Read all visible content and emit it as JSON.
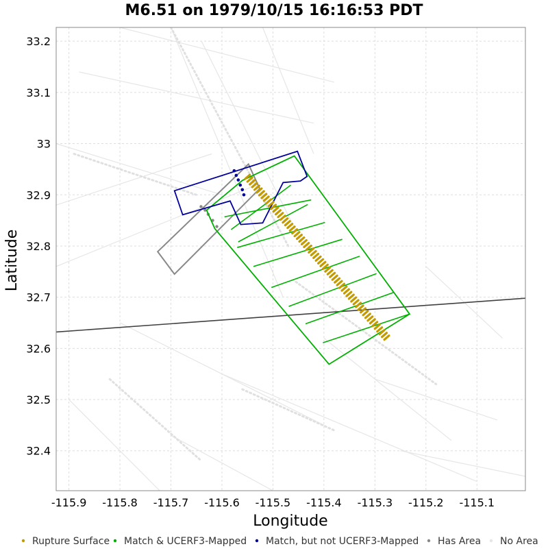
{
  "chart_data": {
    "type": "scatter",
    "title": "M6.51 on 1979/10/15 16:16:53 PDT",
    "xlabel": "Longitude",
    "ylabel": "Latitude",
    "xlim": [
      -115.925,
      -115.005
    ],
    "ylim": [
      32.322,
      33.227
    ],
    "grid": true,
    "x_ticks": [
      -115.9,
      -115.8,
      -115.7,
      -115.6,
      -115.5,
      -115.4,
      -115.3,
      -115.2,
      -115.1
    ],
    "x_tick_labels": [
      "-115.9",
      "-115.8",
      "-115.7",
      "-115.6",
      "-115.5",
      "-115.4",
      "-115.3",
      "-115.2",
      "-115.1"
    ],
    "y_ticks": [
      32.4,
      32.5,
      32.6,
      32.7,
      32.8,
      32.9,
      33.0,
      33.1,
      33.2
    ],
    "y_tick_labels": [
      "32.4",
      "32.5",
      "32.6",
      "32.7",
      "32.8",
      "32.9",
      "33",
      "33.1",
      "33.2"
    ],
    "legend_position": "bottom",
    "legend": [
      {
        "label": "Rupture Surface",
        "color": "#c39a00"
      },
      {
        "label": "Match & UCERF3-Mapped",
        "color": "#00b000"
      },
      {
        "label": "Match, but not UCERF3-Mapped",
        "color": "#00009a"
      },
      {
        "label": "Has Area",
        "color": "#888888"
      },
      {
        "label": "No Area",
        "color": "#e6e6e6"
      }
    ],
    "colors": {
      "rupture": "#c39a00",
      "match_mapped": "#00b000",
      "match_unmapped": "#00009a",
      "has_area": "#888888",
      "no_area": "#e6e6e6",
      "line": "#404040",
      "grid": "#dddddd",
      "frame": "#888888"
    },
    "background_line": {
      "lon": [
        -115.925,
        -115.005
      ],
      "lat": [
        32.632,
        32.698
      ]
    },
    "rupture_surface": {
      "start": [
        -115.55,
        32.935
      ],
      "end": [
        -115.277,
        32.621
      ],
      "count": 60
    },
    "match_mapped_outline": [
      [
        -115.56,
        32.928
      ],
      [
        -115.458,
        32.976
      ],
      [
        -115.232,
        32.667
      ],
      [
        -115.39,
        32.569
      ],
      [
        -115.614,
        32.834
      ],
      [
        -115.63,
        32.87
      ]
    ],
    "match_mapped_segments": [
      [
        [
          -115.595,
          32.857
        ],
        [
          -115.425,
          32.89
        ]
      ],
      [
        [
          -115.582,
          32.832
        ],
        [
          -115.465,
          32.919
        ]
      ],
      [
        [
          -115.568,
          32.808
        ],
        [
          -115.432,
          32.881
        ]
      ],
      [
        [
          -115.57,
          32.797
        ],
        [
          -115.398,
          32.846
        ]
      ],
      [
        [
          -115.538,
          32.76
        ],
        [
          -115.364,
          32.813
        ]
      ],
      [
        [
          -115.503,
          32.719
        ],
        [
          -115.33,
          32.78
        ]
      ],
      [
        [
          -115.469,
          32.682
        ],
        [
          -115.297,
          32.746
        ]
      ],
      [
        [
          -115.436,
          32.648
        ],
        [
          -115.264,
          32.709
        ]
      ],
      [
        [
          -115.402,
          32.611
        ],
        [
          -115.232,
          32.667
        ]
      ]
    ],
    "match_unmapped_outlines": [
      [
        [
          -115.693,
          32.908
        ],
        [
          -115.452,
          32.985
        ],
        [
          -115.433,
          32.936
        ],
        [
          -115.446,
          32.927
        ],
        [
          -115.48,
          32.924
        ],
        [
          -115.52,
          32.845
        ],
        [
          -115.563,
          32.842
        ],
        [
          -115.584,
          32.888
        ],
        [
          -115.677,
          32.861
        ]
      ]
    ],
    "match_unmapped_points": [
      [
        -115.576,
        32.947
      ],
      [
        -115.572,
        32.938
      ],
      [
        -115.568,
        32.929
      ],
      [
        -115.564,
        32.919
      ],
      [
        -115.56,
        32.91
      ],
      [
        -115.557,
        32.9
      ]
    ],
    "has_area_outlines": [
      [
        [
          -115.548,
          32.96
        ],
        [
          -115.526,
          32.912
        ],
        [
          -115.693,
          32.745
        ],
        [
          -115.726,
          32.789
        ]
      ]
    ],
    "has_area_points": [
      [
        -115.641,
        32.877
      ],
      [
        -115.633,
        32.87
      ],
      [
        -115.627,
        32.862
      ],
      [
        -115.618,
        32.85
      ],
      [
        -115.61,
        32.838
      ]
    ],
    "no_area_segments": [
      [
        [
          -115.925,
          32.88
        ],
        [
          -115.62,
          32.98
        ]
      ],
      [
        [
          -115.7,
          33.227
        ],
        [
          -115.48,
          32.7
        ]
      ],
      [
        [
          -115.64,
          33.2
        ],
        [
          -115.44,
          32.8
        ]
      ],
      [
        [
          -115.925,
          33.0
        ],
        [
          -115.6,
          32.9
        ]
      ],
      [
        [
          -115.925,
          32.76
        ],
        [
          -115.53,
          32.92
        ]
      ],
      [
        [
          -115.9,
          32.5
        ],
        [
          -115.7,
          32.3
        ]
      ],
      [
        [
          -115.8,
          32.65
        ],
        [
          -115.4,
          32.45
        ]
      ],
      [
        [
          -115.6,
          32.55
        ],
        [
          -115.1,
          32.34
        ]
      ],
      [
        [
          -115.4,
          32.62
        ],
        [
          -115.15,
          32.42
        ]
      ],
      [
        [
          -115.88,
          33.14
        ],
        [
          -115.42,
          33.04
        ]
      ],
      [
        [
          -115.8,
          33.227
        ],
        [
          -115.38,
          33.12
        ]
      ],
      [
        [
          -115.52,
          33.227
        ],
        [
          -115.42,
          32.98
        ]
      ],
      [
        [
          -115.2,
          32.76
        ],
        [
          -115.05,
          32.62
        ]
      ],
      [
        [
          -115.3,
          32.54
        ],
        [
          -115.06,
          32.46
        ]
      ],
      [
        [
          -115.7,
          32.43
        ],
        [
          -115.5,
          32.322
        ]
      ],
      [
        [
          -115.25,
          32.4
        ],
        [
          -115.005,
          32.35
        ]
      ]
    ],
    "no_area_dotted": [
      [
        [
          -115.7,
          33.227
        ],
        [
          -115.47,
          32.8
        ]
      ],
      [
        [
          -115.455,
          32.73
        ],
        [
          -115.18,
          32.53
        ]
      ],
      [
        [
          -115.89,
          32.98
        ],
        [
          -115.65,
          32.9
        ]
      ],
      [
        [
          -115.82,
          32.54
        ],
        [
          -115.64,
          32.38
        ]
      ],
      [
        [
          -115.56,
          32.52
        ],
        [
          -115.38,
          32.44
        ]
      ]
    ]
  }
}
